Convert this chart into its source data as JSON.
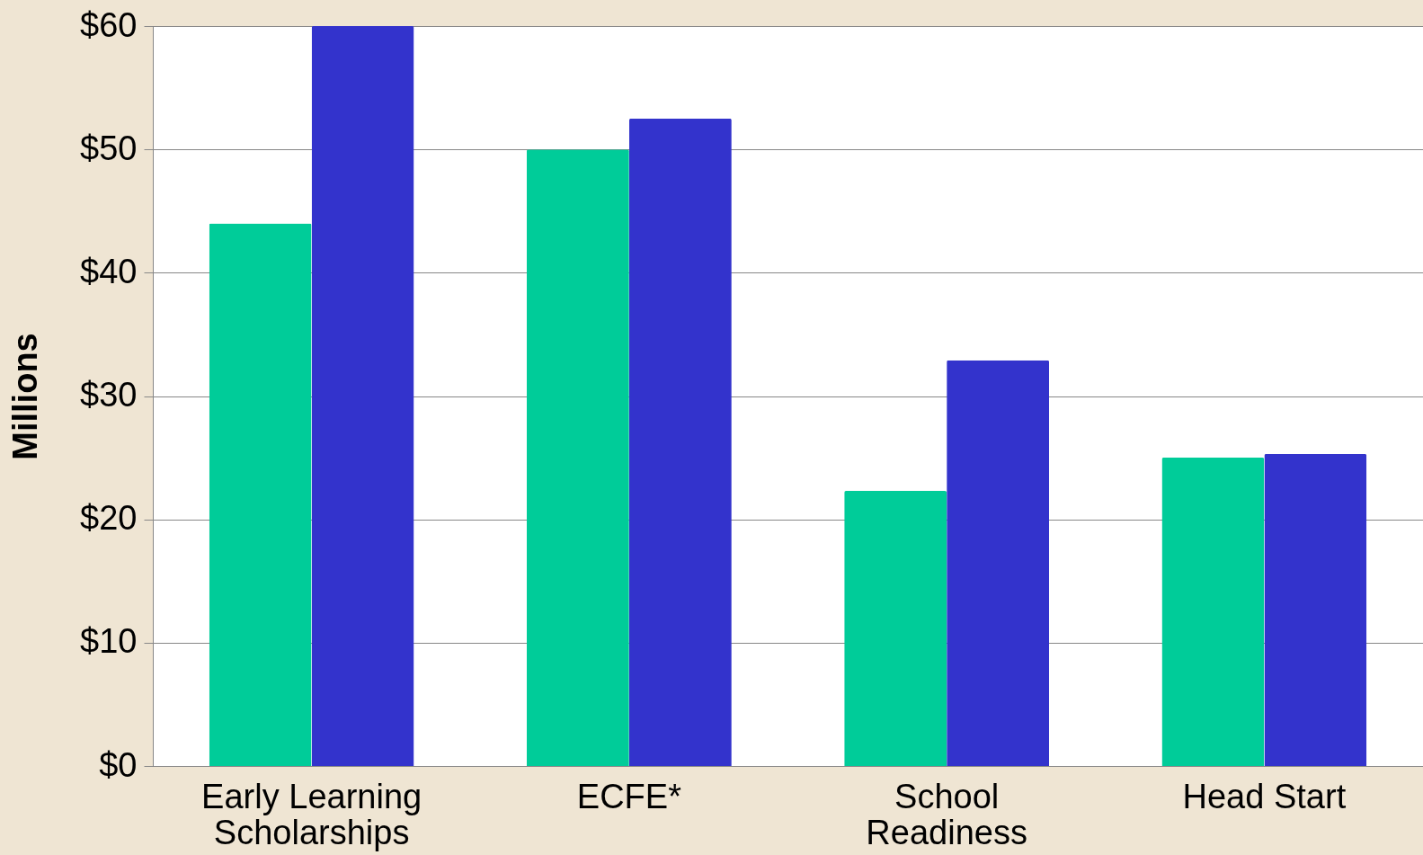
{
  "chart_data": {
    "type": "bar",
    "ylabel": "Millions",
    "categories": [
      "Early Learning\nScholarships",
      "ECFE*",
      "School\nReadiness",
      "Head Start"
    ],
    "series": [
      {
        "color": "#00cc99",
        "values": [
          44,
          50,
          22.3,
          25
        ]
      },
      {
        "color": "#3333cc",
        "values": [
          60,
          52.5,
          32.9,
          25.3
        ]
      }
    ],
    "ylim": [
      0,
      60
    ],
    "yticks": [
      {
        "value": 0,
        "label": "$0"
      },
      {
        "value": 10,
        "label": "$10"
      },
      {
        "value": 20,
        "label": "$20"
      },
      {
        "value": 30,
        "label": "$30"
      },
      {
        "value": 40,
        "label": "$40"
      },
      {
        "value": 50,
        "label": "$50"
      },
      {
        "value": 60,
        "label": "$60"
      }
    ],
    "grid": "y",
    "legend": false
  }
}
